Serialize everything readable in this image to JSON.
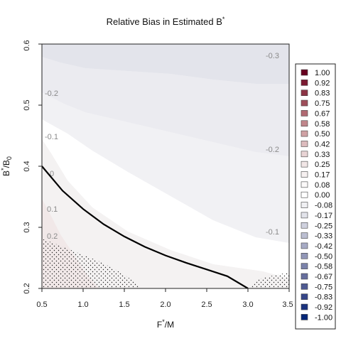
{
  "chart_data": {
    "type": "heatmap",
    "title": "Relative Bias in Estimated B*",
    "xlabel": "F*/M",
    "ylabel": "B*/B0",
    "xlim": [
      0.5,
      3.5
    ],
    "ylim": [
      0.2,
      0.6
    ],
    "x_ticks": [
      "0.5",
      "1.0",
      "1.5",
      "2.0",
      "2.5",
      "3.0",
      "3.5"
    ],
    "y_ticks": [
      "0.2",
      "0.3",
      "0.4",
      "0.5",
      "0.6"
    ],
    "legend_entries": [
      {
        "label": "1.00",
        "color": "#67001f"
      },
      {
        "label": "0.92",
        "color": "#7a1a31"
      },
      {
        "label": "0.83",
        "color": "#8c3445"
      },
      {
        "label": "0.75",
        "color": "#9e4e5a"
      },
      {
        "label": "0.67",
        "color": "#b06a72"
      },
      {
        "label": "0.58",
        "color": "#c0868b"
      },
      {
        "label": "0.50",
        "color": "#cfa1a4"
      },
      {
        "label": "0.42",
        "color": "#dcbbbd"
      },
      {
        "label": "0.33",
        "color": "#e8d3d4"
      },
      {
        "label": "0.25",
        "color": "#f1e6e6"
      },
      {
        "label": "0.17",
        "color": "#f6f0f0"
      },
      {
        "label": "0.08",
        "color": "#fbf9f9"
      },
      {
        "label": "0.00",
        "color": "#ffffff"
      },
      {
        "label": "-0.08",
        "color": "#f0f0f3"
      },
      {
        "label": "-0.17",
        "color": "#e2e3ea"
      },
      {
        "label": "-0.25",
        "color": "#cfd1de"
      },
      {
        "label": "-0.33",
        "color": "#bbbed1"
      },
      {
        "label": "-0.42",
        "color": "#a6aac4"
      },
      {
        "label": "-0.50",
        "color": "#9196b7"
      },
      {
        "label": "-0.58",
        "color": "#7b82aa"
      },
      {
        "label": "-0.67",
        "color": "#666e9d"
      },
      {
        "label": "-0.75",
        "color": "#4f5a92"
      },
      {
        "label": "-0.83",
        "color": "#364688"
      },
      {
        "label": "-0.92",
        "color": "#1b327e"
      },
      {
        "label": "-1.00",
        "color": "#052576"
      }
    ],
    "contour_labels": [
      "-0.3",
      "-0.2",
      "-0.2",
      "-0.1",
      "-0.1",
      "0",
      "0.1",
      "0.2"
    ],
    "reference_curve": [
      [
        0.5,
        0.4
      ],
      [
        0.75,
        0.36
      ],
      [
        1.0,
        0.33
      ],
      [
        1.25,
        0.305
      ],
      [
        1.5,
        0.285
      ],
      [
        1.75,
        0.268
      ],
      [
        2.0,
        0.254
      ],
      [
        2.25,
        0.242
      ],
      [
        2.5,
        0.231
      ],
      [
        2.75,
        0.22
      ],
      [
        3.0,
        0.2
      ]
    ],
    "grid": false,
    "legend_position": "right"
  }
}
